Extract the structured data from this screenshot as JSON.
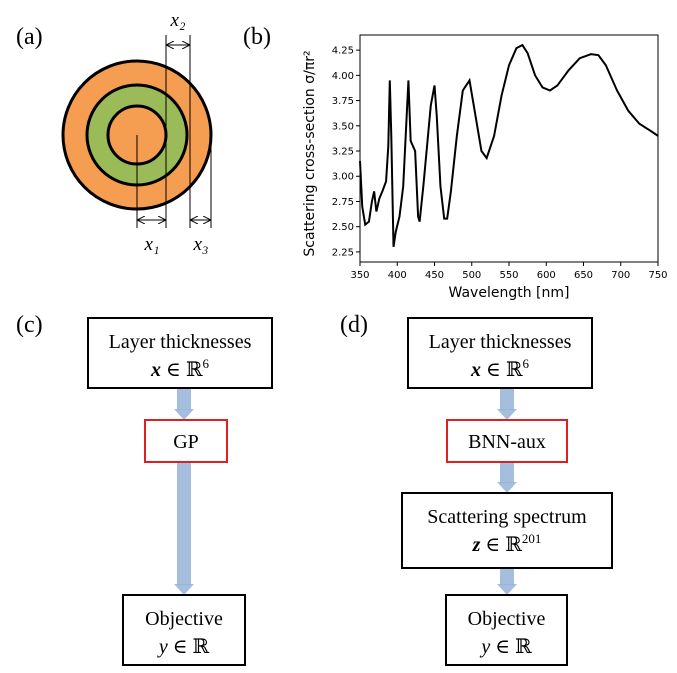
{
  "panel_labels": [
    "(a)",
    "(b)",
    "(c)",
    "(d)"
  ],
  "diagram_a": {
    "labels": [
      "x₂",
      "x₁",
      "x₃"
    ]
  },
  "chart_data": {
    "type": "line",
    "xlabel": "Wavelength [nm]",
    "ylabel": "Scattering cross-section σ/πr²",
    "color": "#000000",
    "x": [
      350,
      353,
      357,
      362,
      366,
      369,
      372,
      376,
      380,
      385,
      388,
      390,
      392,
      395,
      398,
      403,
      408,
      412,
      415,
      418,
      421,
      424,
      428,
      430,
      435,
      440,
      445,
      450,
      453,
      458,
      463,
      467,
      472,
      480,
      488,
      497,
      505,
      513,
      520,
      530,
      540,
      550,
      560,
      568,
      575,
      585,
      595,
      605,
      615,
      630,
      645,
      660,
      670,
      680,
      695,
      710,
      725,
      740,
      750
    ],
    "y": [
      3.15,
      2.7,
      2.52,
      2.55,
      2.75,
      2.85,
      2.65,
      2.78,
      2.85,
      2.95,
      3.3,
      3.95,
      3.4,
      2.3,
      2.45,
      2.6,
      2.9,
      3.5,
      3.95,
      3.35,
      3.3,
      3.25,
      2.6,
      2.55,
      2.9,
      3.3,
      3.7,
      3.9,
      3.6,
      2.9,
      2.58,
      2.58,
      2.85,
      3.4,
      3.85,
      3.95,
      3.6,
      3.25,
      3.18,
      3.4,
      3.8,
      4.1,
      4.27,
      4.3,
      4.22,
      4.0,
      3.88,
      3.85,
      3.9,
      4.05,
      4.17,
      4.21,
      4.2,
      4.1,
      3.85,
      3.65,
      3.52,
      3.45,
      3.4
    ],
    "xlim": [
      350,
      750
    ],
    "ylim": [
      2.15,
      4.4
    ],
    "xticks": [
      350,
      400,
      450,
      500,
      550,
      600,
      650,
      700,
      750
    ],
    "yticks": [
      2.25,
      {
        "value": 2.5,
        "label": "2.50"
      },
      2.75,
      {
        "value": 3,
        "label": "3.00"
      },
      3.25,
      {
        "value": 3.5,
        "label": "3.50"
      },
      3.75,
      {
        "value": 4,
        "label": "4.00"
      },
      4.25
    ]
  },
  "flow_c": {
    "input": {
      "text": "Layer thicknesses",
      "var": "x",
      "rel": " ∈ ℝ",
      "exp": "6"
    },
    "model": "GP",
    "output": {
      "text": "Objective",
      "var": "y",
      "rel": " ∈ ℝ"
    }
  },
  "flow_d": {
    "input": {
      "text": "Layer thicknesses",
      "var": "x",
      "rel": " ∈ ℝ",
      "exp": "6"
    },
    "model": "BNN-aux",
    "aux": {
      "text": "Scattering spectrum",
      "var": "z",
      "rel": " ∈ ℝ",
      "exp": "201"
    },
    "output": {
      "text": "Objective",
      "var": "y",
      "rel": " ∈ ℝ"
    }
  }
}
